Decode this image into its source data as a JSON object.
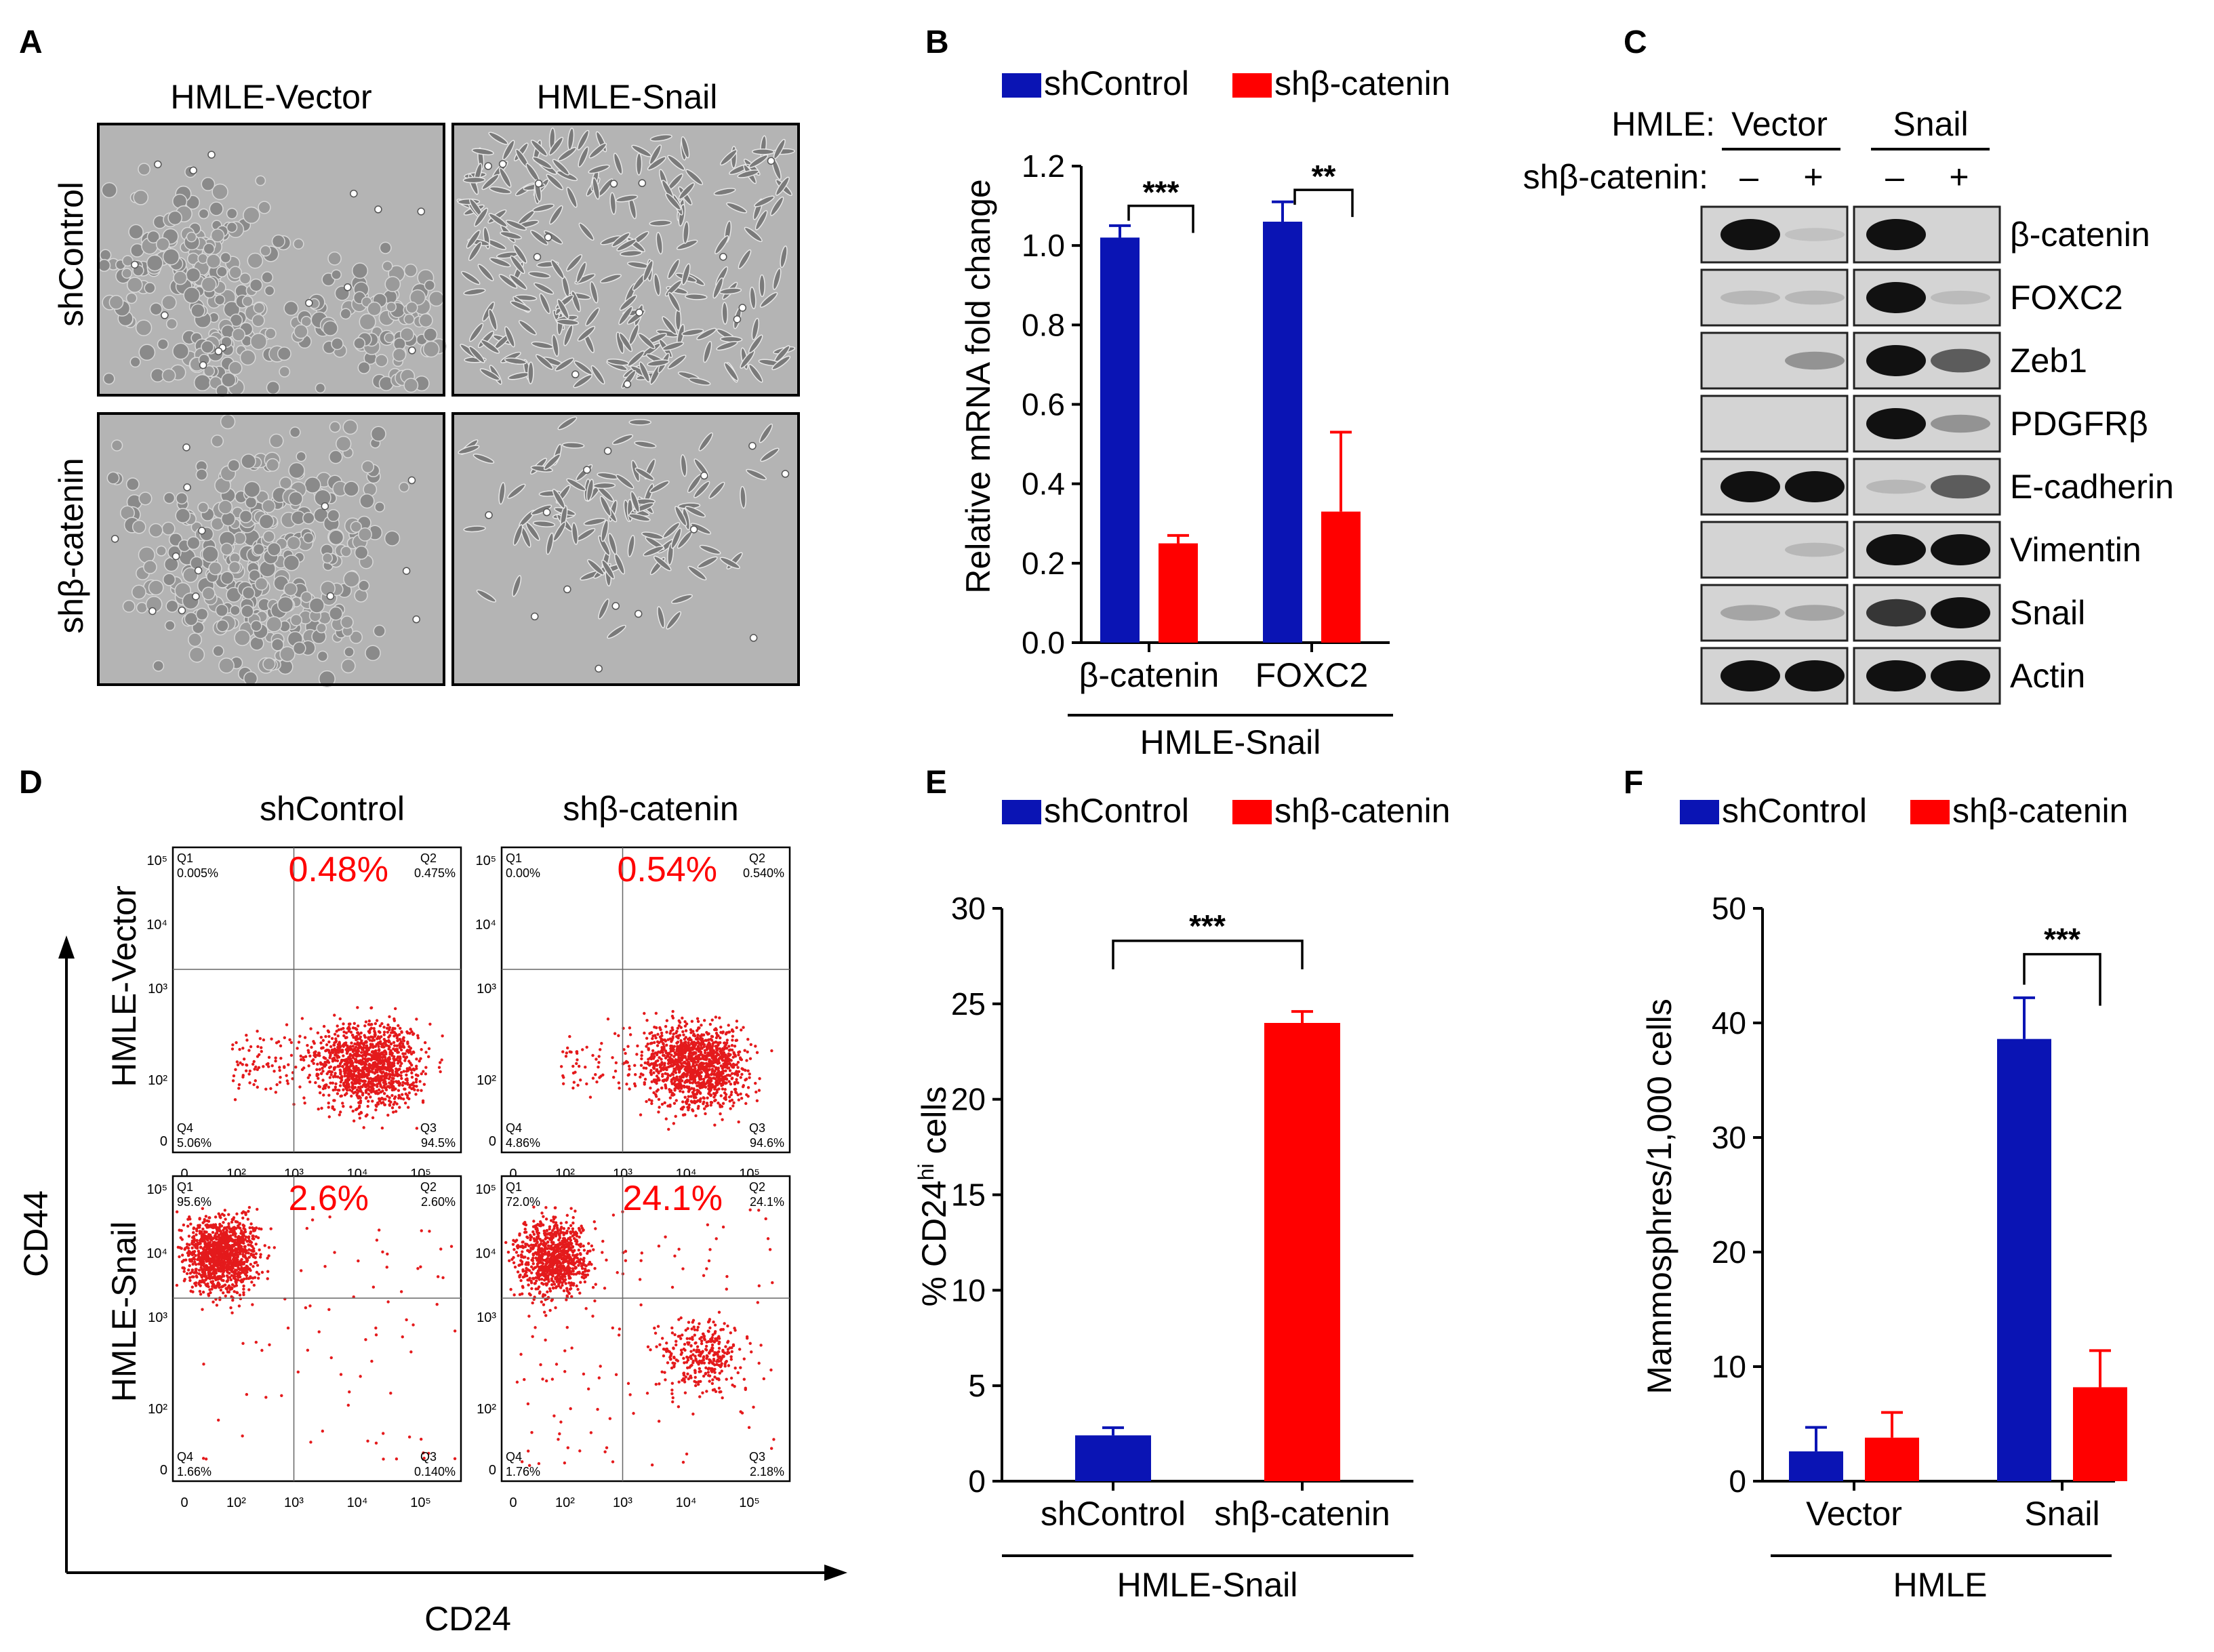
{
  "colors": {
    "control": "#0a14b4",
    "knockdown": "#ff0000",
    "axis": "#000000",
    "pct": "#ff0000",
    "dots": "#e41a1c"
  },
  "panelA": {
    "letter": "A",
    "col_headers": [
      "HMLE-Vector",
      "HMLE-Snail"
    ],
    "row_headers": [
      "shControl",
      "shβ-catenin"
    ]
  },
  "panelB": {
    "letter": "B",
    "legend": [
      "shControl",
      "shβ-catenin"
    ],
    "group_label": "HMLE-Snail"
  },
  "panelC": {
    "letter": "C",
    "header_label": "HMLE:",
    "groups": [
      "Vector",
      "Snail"
    ],
    "sh_label": "shβ-catenin:",
    "lanes": [
      "–",
      "+",
      "–",
      "+"
    ],
    "bands": [
      {
        "name": "β-catenin",
        "intensity": [
          1.0,
          0.05,
          1.0,
          0.0
        ]
      },
      {
        "name": "FOXC2",
        "intensity": [
          0.1,
          0.1,
          1.0,
          0.08
        ]
      },
      {
        "name": "Zeb1",
        "intensity": [
          0.0,
          0.3,
          1.0,
          0.6
        ]
      },
      {
        "name": "PDGFRβ",
        "intensity": [
          0.0,
          0.0,
          1.0,
          0.3
        ]
      },
      {
        "name": "E-cadherin",
        "intensity": [
          1.0,
          1.0,
          0.1,
          0.6
        ]
      },
      {
        "name": "Vimentin",
        "intensity": [
          0.0,
          0.1,
          1.0,
          1.0
        ]
      },
      {
        "name": "Snail",
        "intensity": [
          0.2,
          0.2,
          0.8,
          1.0
        ]
      },
      {
        "name": "Actin",
        "intensity": [
          1.0,
          1.0,
          1.0,
          1.0
        ]
      }
    ]
  },
  "panelD": {
    "letter": "D",
    "col_headers": [
      "shControl",
      "shβ-catenin"
    ],
    "row_headers": [
      "HMLE-Vector",
      "HMLE-Snail"
    ],
    "xlabel": "CD24",
    "ylabel": "CD44",
    "axis_ticks_x": [
      "0",
      "10²",
      "10³",
      "10⁴",
      "10⁵"
    ],
    "axis_ticks_y": [
      "10⁵",
      "10⁴",
      "10³",
      "10²",
      "0"
    ],
    "plots": [
      {
        "big_pct": "0.48%",
        "q1": "Q1",
        "q1v": "0.005%",
        "q2": "Q2",
        "q2v": "0.475%",
        "q3": "Q3",
        "q3v": "94.5%",
        "q4": "Q4",
        "q4v": "5.06%"
      },
      {
        "big_pct": "0.54%",
        "q1": "Q1",
        "q1v": "0.00%",
        "q2": "Q2",
        "q2v": "0.540%",
        "q3": "Q3",
        "q3v": "94.6%",
        "q4": "Q4",
        "q4v": "4.86%"
      },
      {
        "big_pct": "2.6%",
        "q1": "Q1",
        "q1v": "95.6%",
        "q2": "Q2",
        "q2v": "2.60%",
        "q3": "Q3",
        "q3v": "0.140%",
        "q4": "Q4",
        "q4v": "1.66%"
      },
      {
        "big_pct": "24.1%",
        "q1": "Q1",
        "q1v": "72.0%",
        "q2": "Q2",
        "q2v": "24.1%",
        "q3": "Q3",
        "q3v": "2.18%",
        "q4": "Q4",
        "q4v": "1.76%"
      }
    ]
  },
  "panelE": {
    "letter": "E",
    "legend": [
      "shControl",
      "shβ-catenin"
    ],
    "group_label": "HMLE-Snail"
  },
  "panelF": {
    "letter": "F",
    "legend": [
      "shControl",
      "shβ-catenin"
    ],
    "group_label": "HMLE"
  },
  "chart_data": [
    {
      "type": "bar",
      "title": "",
      "xlabel": "HMLE-Snail",
      "ylabel": "Relative mRNA fold change",
      "categories": [
        "β-catenin",
        "FOXC2"
      ],
      "series": [
        {
          "name": "shControl",
          "values": [
            1.02,
            1.06
          ],
          "errors": [
            0.03,
            0.05
          ]
        },
        {
          "name": "shβ-catenin",
          "values": [
            0.25,
            0.33
          ],
          "errors": [
            0.02,
            0.2
          ]
        }
      ],
      "ylim": [
        0,
        1.2
      ],
      "yticks": [
        0.0,
        0.2,
        0.4,
        0.6,
        0.8,
        1.0,
        1.2
      ],
      "ytick_labels": [
        "0.0",
        "0.2",
        "0.4",
        "0.6",
        "0.8",
        "1.0",
        "1.2"
      ],
      "significance": [
        "***",
        "**"
      ]
    },
    {
      "type": "bar",
      "title": "",
      "xlabel": "HMLE-Snail",
      "ylabel": "% CD24",
      "ylabel_sup": "hi",
      "ylabel_tail": " cells",
      "categories": [
        "shControl",
        "shβ-catenin"
      ],
      "series": [
        {
          "name": "%CD24hi",
          "values": [
            2.4,
            24.0
          ],
          "errors": [
            0.4,
            0.6
          ]
        }
      ],
      "ylim": [
        0,
        30
      ],
      "yticks": [
        0,
        5,
        10,
        15,
        20,
        25,
        30
      ],
      "ytick_labels": [
        "0",
        "5",
        "10",
        "15",
        "20",
        "25",
        "30"
      ],
      "significance": [
        "***"
      ]
    },
    {
      "type": "bar",
      "title": "",
      "xlabel": "HMLE",
      "ylabel": "Mammosphres/1,000 cells",
      "categories": [
        "Vector",
        "Snail"
      ],
      "series": [
        {
          "name": "shControl",
          "values": [
            2.6,
            38.6
          ],
          "errors": [
            2.1,
            3.6
          ]
        },
        {
          "name": "shβ-catenin",
          "values": [
            3.8,
            8.2
          ],
          "errors": [
            2.2,
            3.2
          ]
        }
      ],
      "ylim": [
        0,
        50
      ],
      "yticks": [
        0,
        10,
        20,
        30,
        40,
        50
      ],
      "ytick_labels": [
        "0",
        "10",
        "20",
        "30",
        "40",
        "50"
      ],
      "significance": [
        "***"
      ]
    }
  ]
}
